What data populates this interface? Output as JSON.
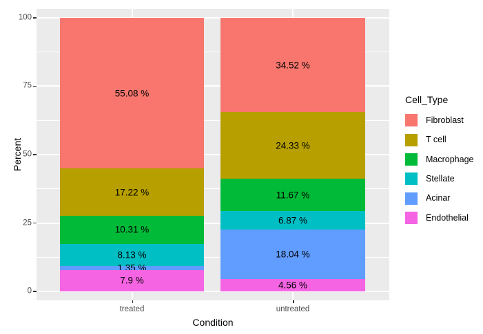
{
  "figure": {
    "background": "#FFFFFF",
    "panel_background": "#EBEBEB",
    "gridline_color": "#FFFFFF",
    "axis_text_color": "#4D4D4D",
    "label_text_color": "#000000"
  },
  "chart_data": {
    "type": "bar",
    "variant": "stacked-percent",
    "title": "",
    "xlabel": "Condition",
    "ylabel": "Percent",
    "categories": [
      "treated",
      "untreated"
    ],
    "ylim": [
      0,
      100
    ],
    "yticks": [
      0,
      25,
      50,
      75,
      100
    ],
    "grid": true,
    "legend_title": "Cell_Type",
    "legend_position": "right",
    "stack_order_top_to_bottom": [
      "Fibroblast",
      "T cell",
      "Macrophage",
      "Stellate",
      "Acinar",
      "Endothelial"
    ],
    "series": [
      {
        "name": "Fibroblast",
        "color": "#F8766D",
        "values": [
          55.08,
          34.52
        ],
        "labels": [
          "55.08 %",
          "34.52 %"
        ]
      },
      {
        "name": "T cell",
        "color": "#B79F00",
        "values": [
          17.22,
          24.33
        ],
        "labels": [
          "17.22 %",
          "24.33 %"
        ]
      },
      {
        "name": "Macrophage",
        "color": "#00BA38",
        "values": [
          10.31,
          11.67
        ],
        "labels": [
          "10.31 %",
          "11.67 %"
        ]
      },
      {
        "name": "Stellate",
        "color": "#00BFC4",
        "values": [
          8.13,
          6.87
        ],
        "labels": [
          "8.13 %",
          "6.87 %"
        ]
      },
      {
        "name": "Acinar",
        "color": "#619CFF",
        "values": [
          1.35,
          18.04
        ],
        "labels": [
          "1.35 %",
          "18.04 %"
        ]
      },
      {
        "name": "Endothelial",
        "color": "#F564E3",
        "values": [
          7.9,
          4.56
        ],
        "labels": [
          "7.9 %",
          "4.56 %"
        ]
      }
    ]
  }
}
